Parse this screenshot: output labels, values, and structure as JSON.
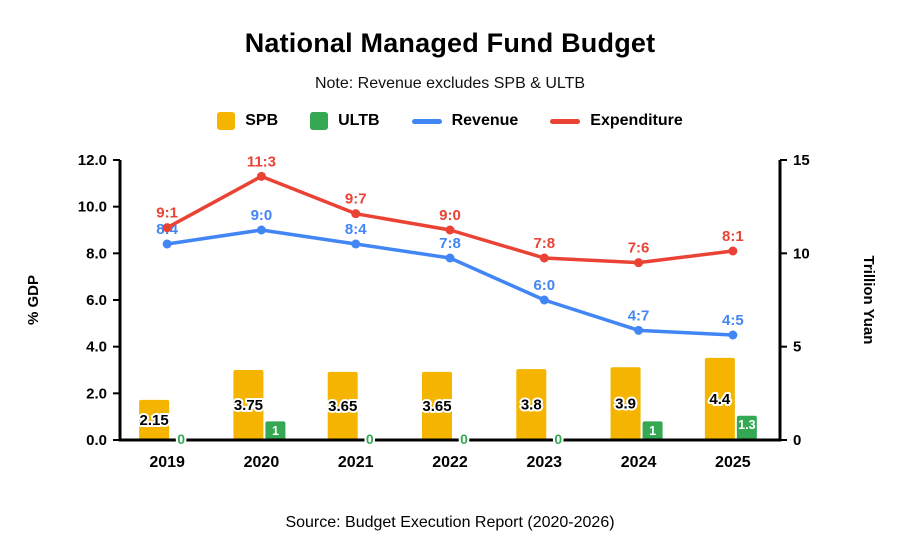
{
  "title": "National Managed Fund Budget",
  "subtitle": "Note: Revenue excludes SPB & ULTB",
  "source": "Source: Budget Execution Report (2020-2026)",
  "colors": {
    "spb": "#F4B400",
    "ultb": "#34A853",
    "revenue": "#4285F4",
    "expenditure": "#EA4335",
    "axis": "#000000",
    "background": "#FFFFFF"
  },
  "legend": [
    {
      "label": "SPB",
      "marker": "square",
      "color": "#F4B400"
    },
    {
      "label": "ULTB",
      "marker": "square",
      "color": "#34A853"
    },
    {
      "label": "Revenue",
      "marker": "line",
      "color": "#4285F4"
    },
    {
      "label": "Expenditure",
      "marker": "line",
      "color": "#EA4335"
    }
  ],
  "chart_data": {
    "type": "mixed",
    "categories": [
      "2019",
      "2020",
      "2021",
      "2022",
      "2023",
      "2024",
      "2025"
    ],
    "left_axis": {
      "title": "% GDP",
      "min": 0,
      "max": 12,
      "ticks": [
        "0.0",
        "2.0",
        "4.0",
        "6.0",
        "8.0",
        "10.0",
        "12.0"
      ]
    },
    "right_axis": {
      "title": "Trillion Yuan",
      "min": 0,
      "max": 15,
      "ticks": [
        "0",
        "5",
        "10",
        "15"
      ]
    },
    "grid": false,
    "legend_position": "top",
    "series": [
      {
        "name": "SPB",
        "type": "bar",
        "axis": "right",
        "color": "#F4B400",
        "values": [
          2.15,
          3.75,
          3.65,
          3.65,
          3.8,
          3.9,
          4.4
        ],
        "labels": [
          "2.15",
          "3.75",
          "3.65",
          "3.65",
          "3.8",
          "3.9",
          "4.4"
        ]
      },
      {
        "name": "ULTB",
        "type": "bar",
        "axis": "right",
        "color": "#34A853",
        "values": [
          0,
          1,
          0,
          0,
          0,
          1,
          1.3
        ],
        "labels": [
          "0",
          "1",
          "0",
          "0",
          "0",
          "1",
          "1.3"
        ]
      },
      {
        "name": "Revenue",
        "type": "line",
        "axis": "left",
        "color": "#4285F4",
        "values": [
          8.4,
          9.0,
          8.4,
          7.8,
          6.0,
          4.7,
          4.5
        ],
        "labels": [
          "8:4",
          "9:0",
          "8:4",
          "7:8",
          "6:0",
          "4:7",
          "4:5"
        ]
      },
      {
        "name": "Expenditure",
        "type": "line",
        "axis": "left",
        "color": "#EA4335",
        "values": [
          9.1,
          11.3,
          9.7,
          9.0,
          7.8,
          7.6,
          8.1
        ],
        "labels": [
          "9:1",
          "11:3",
          "9:7",
          "9:0",
          "7:8",
          "7:6",
          "8:1"
        ]
      }
    ]
  }
}
